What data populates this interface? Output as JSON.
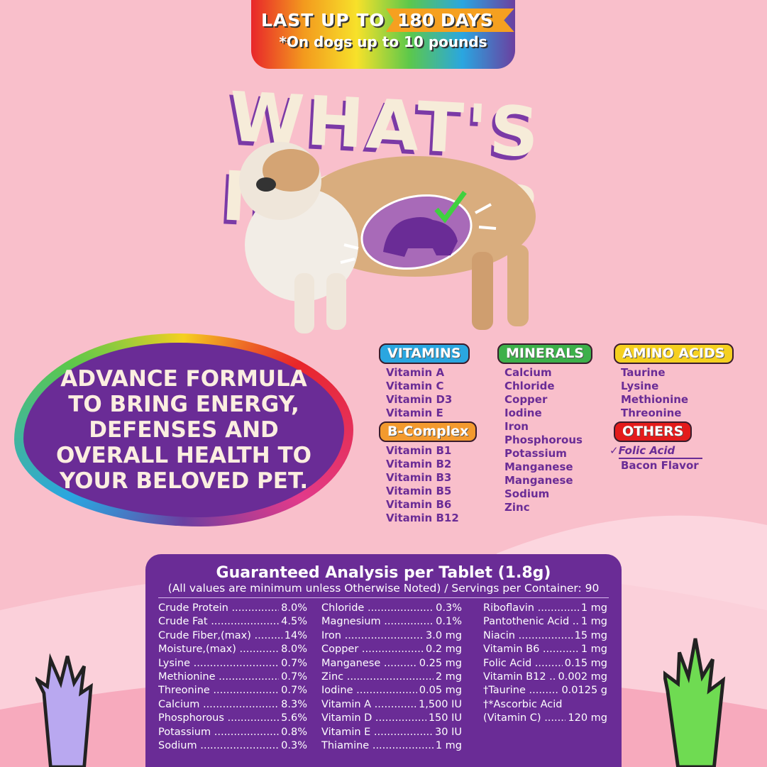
{
  "banner": {
    "line1": "LAST UP TO",
    "days": "180 DAYS",
    "line2": "*On dogs up to 10 pounds"
  },
  "title": "WHAT'S INSIDE?",
  "bubble_text": "ADVANCE FORMULA TO BRING ENERGY, DEFENSES AND OVERALL HEALTH TO YOUR BELOVED PET.",
  "colors": {
    "background": "#f9bfcb",
    "purple": "#6a2c96",
    "vitamins": "#2aa6e0",
    "minerals": "#3db04a",
    "amino": "#f5d020",
    "bcomplex": "#f39a2e",
    "others": "#e31b1b"
  },
  "categories": {
    "vitamins": {
      "label": "VITAMINS",
      "items": [
        "Vitamin A",
        "Vitamin C",
        "Vitamin D3",
        "Vitamin E"
      ]
    },
    "bcomplex": {
      "label": "B-Complex",
      "items": [
        "Vitamin B1",
        "Vitamin B2",
        "Vitamin B3",
        "Vitamin B5",
        "Vitamin B6",
        "Vitamin B12"
      ]
    },
    "minerals": {
      "label": "MINERALS",
      "items": [
        "Calcium",
        "Chloride",
        "Copper",
        "Iodine",
        "Iron",
        "Phosphorous",
        "Potassium",
        "Manganese",
        "Manganese",
        "Sodium",
        "Zinc"
      ]
    },
    "amino": {
      "label": "AMINO ACIDS",
      "items": [
        "Taurine",
        "Lysine",
        "Methionine",
        "Threonine"
      ]
    },
    "others": {
      "label": "OTHERS",
      "items": [
        "Folic Acid",
        "Bacon Flavor"
      ]
    }
  },
  "analysis": {
    "title": "Guaranteed Analysis per Tablet (1.8g)",
    "subtitle": "(All values are minimum unless Otherwise Noted) / Servings per Container: 90",
    "columns": [
      [
        [
          "Crude Protein",
          "8.0%"
        ],
        [
          "Crude Fat",
          "4.5%"
        ],
        [
          "Crude Fiber,(max)",
          "14%"
        ],
        [
          "Moisture,(max)",
          "8.0%"
        ],
        [
          "Lysine",
          "0.7%"
        ],
        [
          "Methionine",
          "0.7%"
        ],
        [
          "Threonine",
          "0.7%"
        ],
        [
          "Calcium",
          "8.3%"
        ],
        [
          "Phosphorous",
          "5.6%"
        ],
        [
          "Potassium",
          "0.8%"
        ],
        [
          "Sodium",
          "0.3%"
        ]
      ],
      [
        [
          "Chloride",
          "0.3%"
        ],
        [
          "Magnesium",
          "0.1%"
        ],
        [
          "Iron",
          "3.0 mg"
        ],
        [
          "Copper",
          "0.2 mg"
        ],
        [
          "Manganese",
          "0.25 mg"
        ],
        [
          "Zinc",
          "2 mg"
        ],
        [
          "Iodine",
          "0.05 mg"
        ],
        [
          "Vitamin A",
          "1,500 IU"
        ],
        [
          "Vitamin D",
          "150 IU"
        ],
        [
          "Vitamin E",
          "30 IU"
        ],
        [
          "Thiamine",
          "1 mg"
        ]
      ],
      [
        [
          "Riboflavin",
          "1 mg"
        ],
        [
          "Pantothenic Acid",
          "1 mg"
        ],
        [
          "Niacin",
          "15 mg"
        ],
        [
          "Vitamin B6",
          "1 mg"
        ],
        [
          "Folic Acid",
          "0.15 mg"
        ],
        [
          "Vitamin B12",
          "0.002 mg"
        ],
        [
          "†Taurine",
          "0.0125 g"
        ],
        [
          "†*Ascorbic Acid",
          ""
        ],
        [
          "(Vitamin C)",
          "120 mg"
        ]
      ]
    ]
  }
}
